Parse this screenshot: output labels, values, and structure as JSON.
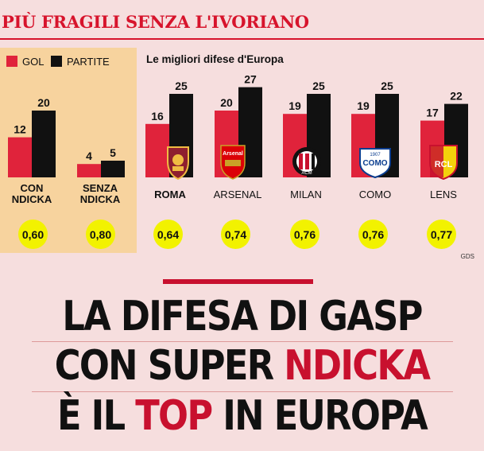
{
  "header": {
    "title": "PIÙ FRAGILI SENZA L'IVORIANO"
  },
  "legend": {
    "gol": "GOL",
    "partite": "PARTITE"
  },
  "subtitle": "Le migliori difese d'Europa",
  "source": "GDS",
  "colors": {
    "gol": "#e0233b",
    "partite": "#111111",
    "accent": "#c8102e",
    "ratio_bg": "#f2f200"
  },
  "chart_data": {
    "type": "bar",
    "title": "Le migliori difese d'Europa",
    "categories": [
      "CON NDICKA",
      "SENZA NDICKA",
      "ROMA",
      "ARSENAL",
      "MILAN",
      "COMO",
      "LENS"
    ],
    "series": [
      {
        "name": "GOL",
        "values": [
          12,
          4,
          16,
          20,
          19,
          19,
          17
        ]
      },
      {
        "name": "PARTITE",
        "values": [
          20,
          5,
          25,
          27,
          25,
          25,
          22
        ]
      }
    ],
    "ratios": [
      "0,60",
      "0,80",
      "0,64",
      "0,74",
      "0,76",
      "0,76",
      "0,77"
    ],
    "ylim": [
      0,
      27
    ],
    "xlabel": "",
    "ylabel": ""
  },
  "labels": {
    "con": [
      "CON",
      "NDICKA"
    ],
    "senza": [
      "SENZA",
      "NDICKA"
    ],
    "roma": "ROMA",
    "arsenal": "ARSENAL",
    "milan": "MILAN",
    "como": "COMO",
    "lens": "LENS"
  },
  "logos": {
    "roma": "roma-crest",
    "arsenal": {
      "icon": "arsenal-crest",
      "text": "Arsenal"
    },
    "milan": {
      "icon": "milan-crest",
      "text": "ACM"
    },
    "como": {
      "icon": "como-crest",
      "text": "COMO",
      "year": "1907"
    },
    "lens": {
      "icon": "lens-crest",
      "text": "RCL"
    }
  },
  "headline": {
    "line1": "LA DIFESA DI GASP",
    "line2_a": "CON SUPER ",
    "line2_b": "NDICKA",
    "line3_a": "È IL ",
    "line3_b": "TOP",
    "line3_c": " IN EUROPA"
  }
}
